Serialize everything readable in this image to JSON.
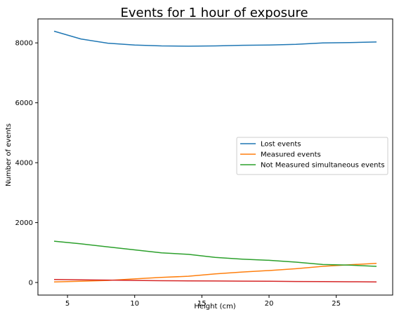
{
  "chart_data": {
    "type": "line",
    "title": "Events for 1 hour of exposure",
    "xlabel": "Height (cm)",
    "ylabel": "Number of events",
    "xlim": [
      2.8,
      29.2
    ],
    "ylim": [
      -420,
      8800
    ],
    "xticks": [
      5,
      10,
      15,
      20,
      25
    ],
    "yticks": [
      0,
      2000,
      4000,
      6000,
      8000
    ],
    "x": [
      4,
      6,
      8,
      10,
      12,
      14,
      16,
      18,
      20,
      22,
      24,
      26,
      28
    ],
    "series": [
      {
        "name": "Lost events",
        "color": "#1f77b4",
        "in_legend": true,
        "values": [
          8390,
          8130,
          7990,
          7930,
          7900,
          7890,
          7900,
          7920,
          7930,
          7950,
          8000,
          8010,
          8030
        ]
      },
      {
        "name": "Measured events",
        "color": "#ff7f0e",
        "in_legend": true,
        "values": [
          20,
          40,
          70,
          120,
          170,
          210,
          290,
          350,
          400,
          460,
          540,
          590,
          640
        ]
      },
      {
        "name": "Not Measured simultaneous events",
        "color": "#2ca02c",
        "in_legend": true,
        "values": [
          1380,
          1290,
          1190,
          1090,
          990,
          940,
          840,
          780,
          740,
          680,
          600,
          580,
          540
        ]
      },
      {
        "name": "",
        "color": "#d62728",
        "in_legend": false,
        "values": [
          100,
          90,
          80,
          70,
          60,
          55,
          50,
          45,
          40,
          35,
          30,
          25,
          20
        ]
      }
    ],
    "grid": false,
    "legend_position": "center-right"
  }
}
